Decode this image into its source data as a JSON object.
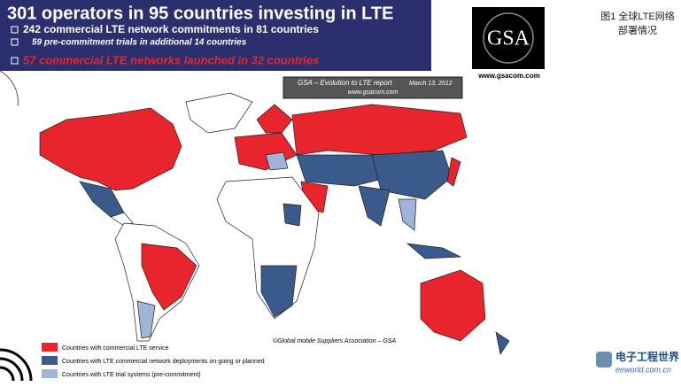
{
  "header": {
    "title": "301 operators in 95 countries investing in LTE",
    "lines": [
      "242 commercial LTE network commitments in 81 countries",
      "59 pre-commitment trials in additional 14 countries",
      "57 commercial LTE networks launched in 32 countries"
    ]
  },
  "logo": {
    "name": "GSA",
    "url": "www.gsacom.com"
  },
  "caption": [
    "图1 全球LTE网络",
    "部署情况"
  ],
  "report": {
    "title": "GSA – Evolution to LTE report",
    "date": "March 13, 2012",
    "url": "www.gsacom.com"
  },
  "copyright": "©Global mobile Suppliers Association – GSA",
  "legend": [
    "Countries with commercial LTE service",
    "Countries with LTE commercial network deployments on-going or planned",
    "Countries with LTE trial systems (pre-commitment)"
  ],
  "watermark": {
    "name": "电子工程世界",
    "url": "eeworld.com.cn"
  }
}
